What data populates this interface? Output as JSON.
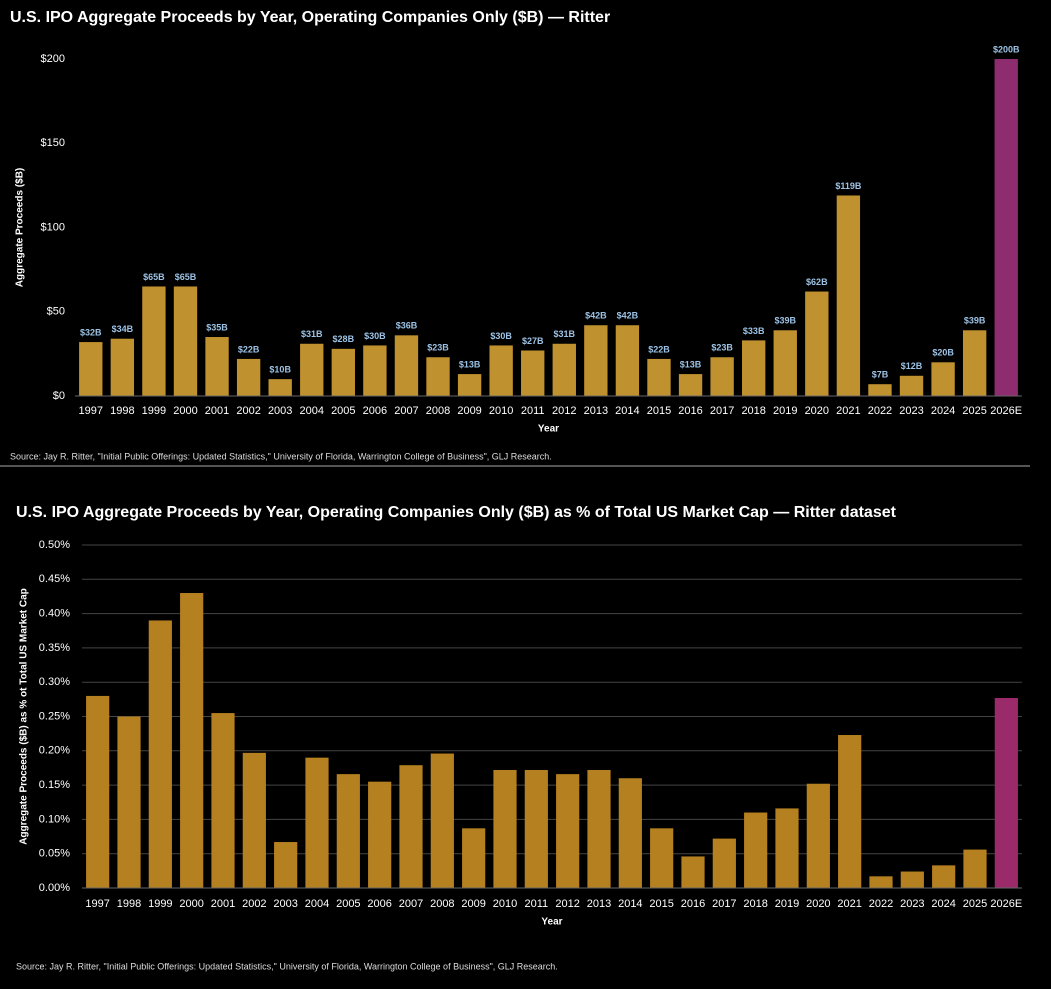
{
  "chart_data": [
    {
      "type": "bar",
      "title": "U.S. IPO Aggregate Proceeds by Year, Operating Companies Only ($B) — Ritter",
      "x_label": "Year",
      "y_label": "Aggregate Proceeds ($B)",
      "source": "Source: Jay R. Ritter, \"Initial Public Offerings: Updated Statistics,\" University of Florida, Warrington College of Business\", GLJ Research.",
      "categories": [
        "1997",
        "1998",
        "1999",
        "2000",
        "2001",
        "2002",
        "2003",
        "2004",
        "2005",
        "2006",
        "2007",
        "2008",
        "2009",
        "2010",
        "2011",
        "2012",
        "2013",
        "2014",
        "2015",
        "2016",
        "2017",
        "2018",
        "2019",
        "2020",
        "2021",
        "2022",
        "2023",
        "2024",
        "2025",
        "2026E"
      ],
      "values": [
        32,
        34,
        65,
        65,
        35,
        22,
        10,
        31,
        28,
        30,
        36,
        23,
        13,
        30,
        27,
        31,
        42,
        42,
        22,
        13,
        23,
        33,
        39,
        62,
        119,
        7,
        12,
        20,
        39,
        200
      ],
      "value_labels": [
        "$32B",
        "$34B",
        "$65B",
        "$65B",
        "$35B",
        "$22B",
        "$10B",
        "$31B",
        "$28B",
        "$30B",
        "$36B",
        "$23B",
        "$13B",
        "$30B",
        "$27B",
        "$31B",
        "$42B",
        "$42B",
        "$22B",
        "$13B",
        "$23B",
        "$33B",
        "$39B",
        "$62B",
        "$119B",
        "$7B",
        "$12B",
        "$20B",
        "$39B",
        "$200B"
      ],
      "colors": [
        "#c0912f",
        "#c0912f",
        "#c0912f",
        "#c0912f",
        "#c0912f",
        "#c0912f",
        "#c0912f",
        "#c0912f",
        "#c0912f",
        "#c0912f",
        "#c0912f",
        "#c0912f",
        "#c0912f",
        "#c0912f",
        "#c0912f",
        "#c0912f",
        "#c0912f",
        "#c0912f",
        "#c0912f",
        "#c0912f",
        "#c0912f",
        "#c0912f",
        "#c0912f",
        "#c0912f",
        "#c0912f",
        "#c0912f",
        "#c0912f",
        "#c0912f",
        "#c0912f",
        "#8e2c70"
      ],
      "ylim": [
        0,
        200
      ],
      "yticks": [
        {
          "value": 0,
          "label": "$0"
        },
        {
          "value": 50,
          "label": "$50"
        },
        {
          "value": 100,
          "label": "$100"
        },
        {
          "value": 150,
          "label": "$150"
        },
        {
          "value": 200,
          "label": "$200"
        }
      ],
      "grid": false
    },
    {
      "type": "bar",
      "title": "U.S. IPO Aggregate Proceeds by Year, Operating Companies Only ($B) as % of Total US Market Cap — Ritter dataset",
      "x_label": "Year",
      "y_label": "Aggregate Proceeds ($B) as % ot Total US Market Cap",
      "source": "Source: Jay R. Ritter, \"Initial Public Offerings: Updated Statistics,\" University of Florida, Warrington College of Business\", GLJ Research.",
      "categories": [
        "1997",
        "1998",
        "1999",
        "2000",
        "2001",
        "2002",
        "2003",
        "2004",
        "2005",
        "2006",
        "2007",
        "2008",
        "2009",
        "2010",
        "2011",
        "2012",
        "2013",
        "2014",
        "2015",
        "2016",
        "2017",
        "2018",
        "2019",
        "2020",
        "2021",
        "2022",
        "2023",
        "2024",
        "2025",
        "2026E"
      ],
      "values": [
        0.28,
        0.25,
        0.39,
        0.43,
        0.255,
        0.197,
        0.067,
        0.19,
        0.166,
        0.155,
        0.179,
        0.196,
        0.087,
        0.172,
        0.172,
        0.166,
        0.172,
        0.16,
        0.087,
        0.046,
        0.072,
        0.11,
        0.116,
        0.152,
        0.223,
        0.017,
        0.024,
        0.033,
        0.056,
        0.277
      ],
      "colors": [
        "#b5801f",
        "#b5801f",
        "#b5801f",
        "#b5801f",
        "#b5801f",
        "#b5801f",
        "#b5801f",
        "#b5801f",
        "#b5801f",
        "#b5801f",
        "#b5801f",
        "#b5801f",
        "#b5801f",
        "#b5801f",
        "#b5801f",
        "#b5801f",
        "#b5801f",
        "#b5801f",
        "#b5801f",
        "#b5801f",
        "#b5801f",
        "#b5801f",
        "#b5801f",
        "#b5801f",
        "#b5801f",
        "#b5801f",
        "#b5801f",
        "#b5801f",
        "#b5801f",
        "#9b2a6a"
      ],
      "ylim": [
        0,
        0.5
      ],
      "yticks": [
        {
          "value": 0,
          "label": "0.00%"
        },
        {
          "value": 0.05,
          "label": "0.05%"
        },
        {
          "value": 0.1,
          "label": "0.10%"
        },
        {
          "value": 0.15,
          "label": "0.15%"
        },
        {
          "value": 0.2,
          "label": "0.20%"
        },
        {
          "value": 0.25,
          "label": "0.25%"
        },
        {
          "value": 0.3,
          "label": "0.30%"
        },
        {
          "value": 0.35,
          "label": "0.35%"
        },
        {
          "value": 0.4,
          "label": "0.40%"
        },
        {
          "value": 0.45,
          "label": "0.45%"
        },
        {
          "value": 0.5,
          "label": "0.50%"
        }
      ],
      "grid": true
    }
  ]
}
